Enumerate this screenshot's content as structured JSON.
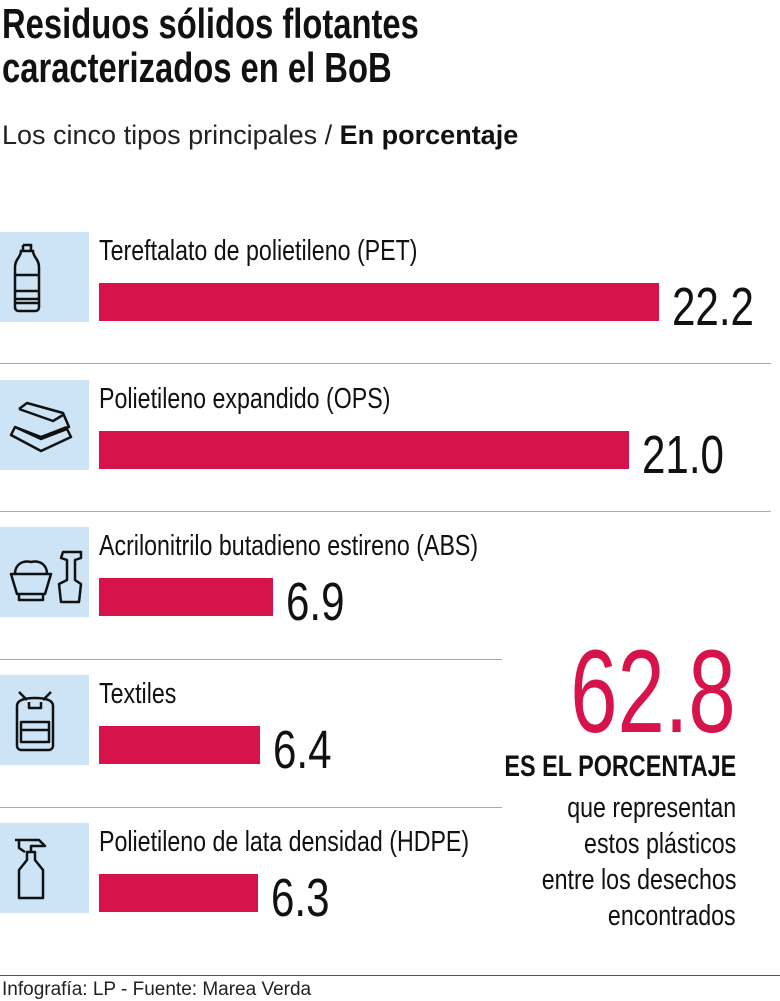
{
  "title_line1": "Residuos sólidos flotantes",
  "title_line2": "caracterizados en el BoB",
  "subtitle_light": "Los cinco tipos principales / ",
  "subtitle_bold": "En porcentaje",
  "chart_data": {
    "type": "bar",
    "orientation": "horizontal",
    "categories": [
      "Tereftalato de polietileno (PET)",
      "Polietileno expandido (OPS)",
      "Acrilonitrilo butadieno estireno (ABS)",
      "Textiles",
      "Polietileno de lata densidad (HDPE)"
    ],
    "values": [
      22.2,
      21.0,
      6.9,
      6.4,
      6.3
    ],
    "value_labels": [
      "22.2",
      "21.0",
      "6.9",
      "6.4",
      "6.3"
    ],
    "icons": [
      "bottle-icon",
      "food-container-icon",
      "bucket-shovel-icon",
      "backpack-icon",
      "spray-bottle-icon"
    ],
    "bar_color": "#d6134a",
    "icon_bg_color": "#cce4f6"
  },
  "highlight": {
    "value": "62.8",
    "value_color": "#d6134a",
    "heading": "ES EL PORCENTAJE",
    "lines": [
      "que representan",
      "estos plásticos",
      "entre los desechos",
      "encontrados"
    ]
  },
  "footer": "Infografía: LP - Fuente: Marea Verda"
}
